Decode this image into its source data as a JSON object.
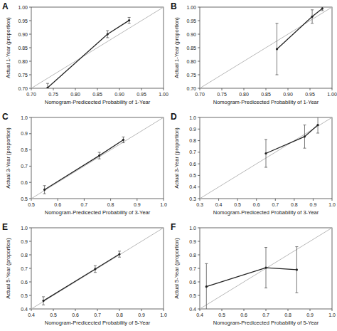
{
  "chart_data": [
    {
      "type": "line",
      "title": "A",
      "x_label": "Nomogram-Predicected Probability of 1-Year",
      "y_label": "Actual 1-Year (proportion)",
      "x": [
        0.737,
        0.873,
        0.922
      ],
      "values": [
        0.702,
        0.9,
        0.951
      ],
      "error": [
        0.016,
        0.013,
        0.011
      ],
      "xlim": [
        0.7,
        1.0
      ],
      "ylim": [
        0.7,
        1.0
      ],
      "xticks": [
        {
          "value": 0.7,
          "label": "0.70"
        },
        {
          "value": 0.75,
          "label": "0.75"
        },
        {
          "value": 0.8,
          "label": "0.80"
        },
        {
          "value": 0.85,
          "label": "0.85"
        },
        {
          "value": 0.9,
          "label": "0.90"
        },
        {
          "value": 0.95,
          "label": "0.95"
        },
        {
          "value": 1.0,
          "label": "1.00"
        }
      ],
      "yticks": [
        {
          "value": 0.7,
          "label": "0.70"
        },
        {
          "value": 0.75,
          "label": "0.75"
        },
        {
          "value": 0.8,
          "label": "0.80"
        },
        {
          "value": 0.85,
          "label": "0.85"
        },
        {
          "value": 0.9,
          "label": "0.90"
        },
        {
          "value": 0.95,
          "label": "0.95"
        },
        {
          "value": 1.0,
          "label": "1.00"
        }
      ],
      "marker": "circle",
      "color": "#222222"
    },
    {
      "type": "line",
      "title": "B",
      "x_label": "Nomogram-Predicected Probability of 1-Year",
      "y_label": "Actual 1-Year (proportion)",
      "x": [
        0.875,
        0.955,
        0.978
      ],
      "values": [
        0.845,
        0.965,
        0.995
      ],
      "error": [
        0.095,
        0.025,
        0.008
      ],
      "xlim": [
        0.7,
        1.0
      ],
      "ylim": [
        0.7,
        1.0
      ],
      "xticks": [
        {
          "value": 0.7,
          "label": "0.70"
        },
        {
          "value": 0.75,
          "label": "0.75"
        },
        {
          "value": 0.8,
          "label": "0.80"
        },
        {
          "value": 0.85,
          "label": "0.85"
        },
        {
          "value": 0.9,
          "label": "0.90"
        },
        {
          "value": 0.95,
          "label": "0.95"
        },
        {
          "value": 1.0,
          "label": "1.00"
        }
      ],
      "yticks": [
        {
          "value": 0.7,
          "label": "0.70"
        },
        {
          "value": 0.75,
          "label": "0.75"
        },
        {
          "value": 0.8,
          "label": "0.80"
        },
        {
          "value": 0.85,
          "label": "0.85"
        },
        {
          "value": 0.9,
          "label": "0.90"
        },
        {
          "value": 0.95,
          "label": "0.95"
        },
        {
          "value": 1.0,
          "label": "1.00"
        }
      ],
      "marker": "circle",
      "color": "#222222"
    },
    {
      "type": "line",
      "title": "C",
      "x_label": "Nomogram-Predicected Probability of 3-Year",
      "y_label": "Actual 3-Year (proportion)",
      "x": [
        0.55,
        0.757,
        0.848
      ],
      "values": [
        0.555,
        0.765,
        0.862
      ],
      "error": [
        0.025,
        0.02,
        0.018
      ],
      "xlim": [
        0.5,
        1.0
      ],
      "ylim": [
        0.5,
        1.0
      ],
      "xticks": [
        0.5,
        0.6,
        0.7,
        0.8,
        0.9,
        {
          "value": 1.0,
          "label": "1.0"
        }
      ],
      "yticks": [
        0.5,
        0.6,
        0.7,
        0.8,
        0.9,
        {
          "value": 1.0,
          "label": "1.0"
        }
      ],
      "marker": "circle",
      "color": "#222222"
    },
    {
      "type": "line",
      "title": "D",
      "x_label": "Nomogram-Predicected Probability of 3-Year",
      "y_label": "Actual 3-Year (proportion)",
      "x": [
        0.65,
        0.855,
        0.925
      ],
      "values": [
        0.69,
        0.835,
        0.935
      ],
      "error": [
        0.12,
        0.1,
        0.07
      ],
      "xlim": [
        0.3,
        1.0
      ],
      "ylim": [
        0.3,
        1.0
      ],
      "xticks": [
        0.3,
        0.4,
        0.5,
        0.6,
        0.7,
        0.8,
        0.9,
        {
          "value": 1.0,
          "label": "1.0"
        }
      ],
      "yticks": [
        0.3,
        0.4,
        0.5,
        0.6,
        0.7,
        0.8,
        0.9,
        {
          "value": 1.0,
          "label": "1.0"
        }
      ],
      "marker": "circle",
      "color": "#222222"
    },
    {
      "type": "line",
      "title": "E",
      "x_label": "Nomogram-Predicected Probability of 5-Year",
      "y_label": "Actual 5-Year (proportion)",
      "x": [
        0.455,
        0.69,
        0.8
      ],
      "values": [
        0.46,
        0.695,
        0.805
      ],
      "error": [
        0.03,
        0.025,
        0.022
      ],
      "xlim": [
        0.4,
        1.0
      ],
      "ylim": [
        0.4,
        1.0
      ],
      "xticks": [
        0.4,
        0.5,
        0.6,
        0.7,
        0.8,
        0.9,
        {
          "value": 1.0,
          "label": "1.0"
        }
      ],
      "yticks": [
        0.4,
        0.5,
        0.6,
        0.7,
        0.8,
        0.9,
        {
          "value": 1.0,
          "label": "1.0"
        }
      ],
      "marker": "circle",
      "color": "#222222"
    },
    {
      "type": "line",
      "title": "F",
      "x_label": "Nomogram-Predicected Probability of 5-Year",
      "y_label": "Actual 5-Year (proportion)",
      "x": [
        0.43,
        0.7,
        0.84
      ],
      "values": [
        0.565,
        0.705,
        0.69
      ],
      "error": [
        0.17,
        0.15,
        0.17
      ],
      "xlim": [
        0.4,
        1.0
      ],
      "ylim": [
        0.4,
        1.0
      ],
      "xticks": [
        0.4,
        0.5,
        0.6,
        0.7,
        0.8,
        0.9,
        {
          "value": 1.0,
          "label": "1.0"
        }
      ],
      "yticks": [
        0.4,
        0.5,
        0.6,
        0.7,
        0.8,
        0.9,
        {
          "value": 1.0,
          "label": "1.0"
        }
      ],
      "marker": "circle",
      "color": "#222222"
    }
  ]
}
